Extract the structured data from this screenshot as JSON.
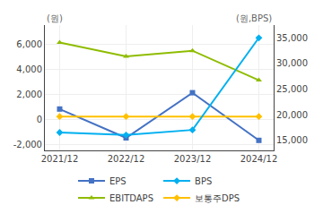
{
  "chart_data": {
    "type": "line",
    "ylabel": "(원)",
    "y2label": "(원,BPS)",
    "categories": [
      "2021/12",
      "2022/12",
      "2023/12",
      "2024/12"
    ],
    "series": [
      {
        "name": "EPS",
        "color": "#4472c4",
        "marker": "square",
        "values": [
          800,
          -1500,
          2100,
          -1700
        ]
      },
      {
        "name": "BPS",
        "color": "#00b0f0",
        "marker": "diamond",
        "axis": "y2",
        "values": [
          16500,
          16000,
          17000,
          35000
        ]
      },
      {
        "name": "EBITDAPS",
        "color": "#8fbc00",
        "marker": "triangle-up",
        "values": [
          6100,
          5000,
          5450,
          3100
        ]
      },
      {
        "name": "보통주DPS",
        "color": "#ffc000",
        "marker": "diamond",
        "values": [
          200,
          200,
          200,
          200
        ]
      }
    ],
    "ylim": [
      -2500,
      7500
    ],
    "yticks": [
      {
        "value": -2000,
        "label": "-2,000"
      },
      0,
      {
        "value": 2000,
        "label": "2,000"
      },
      {
        "value": 4000,
        "label": "4,000"
      },
      {
        "value": 6000,
        "label": "6,000"
      }
    ],
    "y2lim": [
      13000,
      37500
    ],
    "y2ticks": [
      {
        "value": 15000,
        "label": "15,000"
      },
      {
        "value": 20000,
        "label": "20,000"
      },
      {
        "value": 25000,
        "label": "25,000"
      },
      {
        "value": 30000,
        "label": "30,000"
      },
      {
        "value": 35000,
        "label": "35,000"
      }
    ],
    "grid": true,
    "legend": "bottom"
  }
}
